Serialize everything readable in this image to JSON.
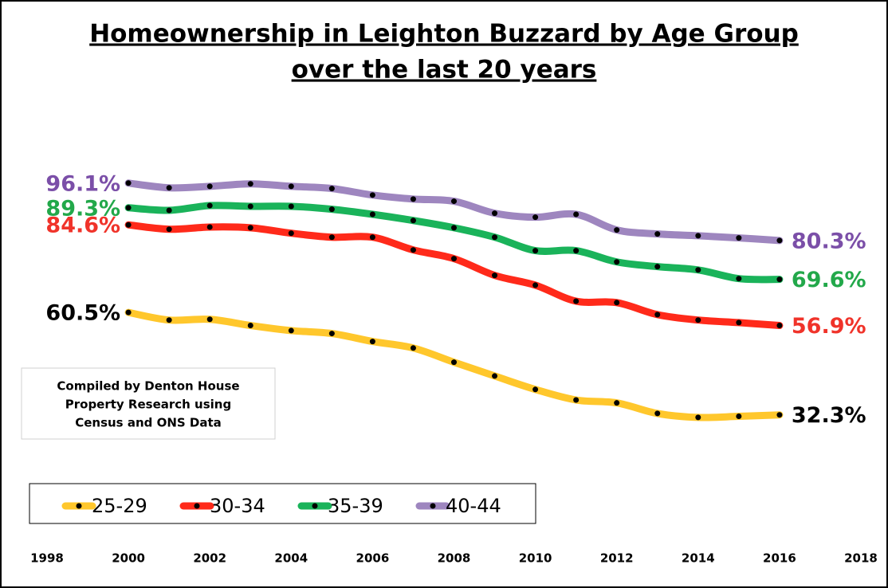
{
  "chart_data": {
    "type": "line",
    "title": [
      "Homeownership in Leighton Buzzard by Age Group",
      "over the last 20 years"
    ],
    "annotation": [
      "Compiled by Denton House",
      "Property Research using",
      "Census and ONS Data"
    ],
    "x": [
      2000,
      2001,
      2002,
      2003,
      2004,
      2005,
      2006,
      2007,
      2008,
      2009,
      2010,
      2011,
      2012,
      2013,
      2014,
      2015,
      2016
    ],
    "xlim": [
      1998,
      2018
    ],
    "xticks": [
      1998,
      2000,
      2002,
      2004,
      2006,
      2008,
      2010,
      2012,
      2014,
      2016,
      2018
    ],
    "ylim": [
      0,
      100
    ],
    "grid": false,
    "legend": "bottom-left",
    "series": [
      {
        "name": "25-29",
        "color": "#ffc72c",
        "label_color": "#000000",
        "values": [
          60.5,
          58.4,
          58.6,
          56.9,
          55.5,
          54.7,
          52.5,
          50.7,
          46.8,
          43.0,
          39.3,
          36.4,
          35.6,
          32.7,
          31.6,
          31.9,
          32.3
        ],
        "value_labels": [
          "60.5%",
          null,
          null,
          null,
          null,
          null,
          null,
          null,
          null,
          null,
          null,
          null,
          null,
          null,
          null,
          null,
          "32.3%"
        ]
      },
      {
        "name": "30-34",
        "color": "#ff2a1a",
        "label_color": "#f0332a",
        "values": [
          84.6,
          83.4,
          84.0,
          83.8,
          82.3,
          81.2,
          81.2,
          77.7,
          75.3,
          70.7,
          68.0,
          63.6,
          63.2,
          59.9,
          58.4,
          57.7,
          56.9
        ],
        "value_labels": [
          "84.6%",
          null,
          null,
          null,
          null,
          null,
          null,
          null,
          null,
          null,
          null,
          null,
          null,
          null,
          null,
          null,
          "56.9%"
        ]
      },
      {
        "name": "35-39",
        "color": "#1ab35a",
        "label_color": "#22a84a",
        "values": [
          89.3,
          88.6,
          89.9,
          89.7,
          89.7,
          88.9,
          87.5,
          85.8,
          83.8,
          81.2,
          77.5,
          77.5,
          74.4,
          73.1,
          72.2,
          69.8,
          69.6
        ],
        "value_labels": [
          "89.3%",
          null,
          null,
          null,
          null,
          null,
          null,
          null,
          null,
          null,
          null,
          null,
          null,
          null,
          null,
          null,
          "69.6%"
        ]
      },
      {
        "name": "40-44",
        "color": "#9e86bf",
        "label_color": "#7b4fa8",
        "values": [
          96.1,
          94.8,
          95.2,
          95.9,
          95.2,
          94.6,
          92.8,
          91.7,
          91.1,
          87.8,
          86.7,
          87.5,
          83.2,
          82.1,
          81.6,
          81.0,
          80.3
        ],
        "value_labels": [
          "96.1%",
          null,
          null,
          null,
          null,
          null,
          null,
          null,
          null,
          null,
          null,
          null,
          null,
          null,
          null,
          null,
          "80.3%"
        ]
      }
    ]
  }
}
